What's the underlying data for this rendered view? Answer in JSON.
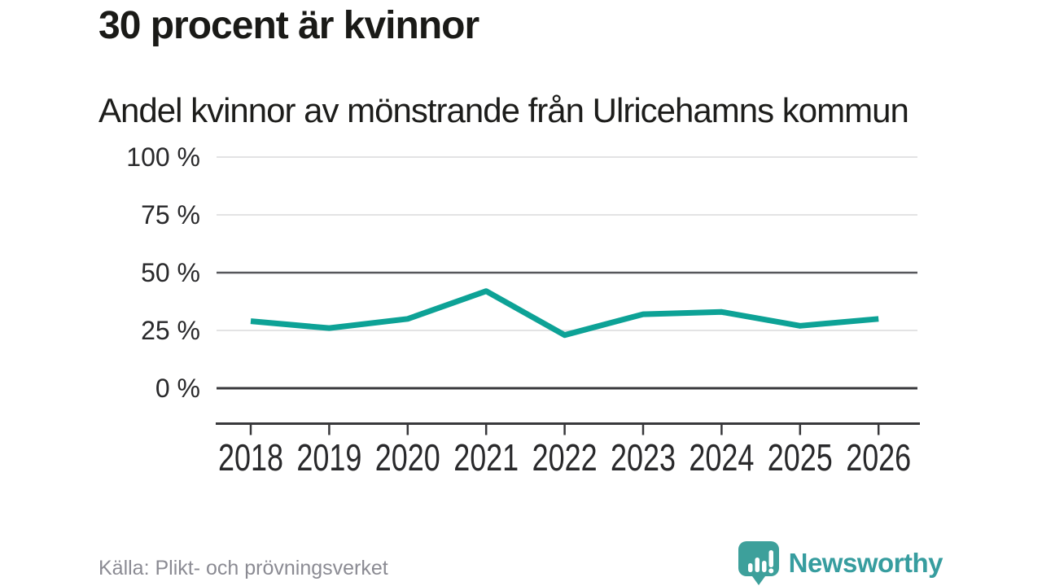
{
  "header": {
    "title": "30 procent är kvinnor",
    "subtitle": "Andel kvinnor av mönstrande från Ulricehamns kommun"
  },
  "chart_data": {
    "type": "line",
    "title": "30 procent är kvinnor",
    "subtitle": "Andel kvinnor av mönstrande från Ulricehamns kommun",
    "categories": [
      "2018",
      "2019",
      "2020",
      "2021",
      "2022",
      "2023",
      "2024",
      "2025",
      "2026"
    ],
    "series": [
      {
        "name": "Andel kvinnor av mönstrande",
        "values": [
          29,
          26,
          30,
          42,
          23,
          32,
          33,
          27,
          30
        ]
      }
    ],
    "unit": "%",
    "ylim": [
      0,
      100
    ],
    "yticks": [
      0,
      25,
      50,
      75,
      100
    ],
    "ytick_labels": [
      "0 %",
      "25 %",
      "50 %",
      "75 %",
      "100 %"
    ],
    "grid": "horizontal",
    "emphasized_gridlines": [
      0,
      50
    ],
    "legend_position": "none",
    "line_color": "#0DA296"
  },
  "footer": {
    "source": "Källa: Plikt- och prövningsverket",
    "brand_name": "Newsworthy"
  },
  "colors": {
    "accent": "#0DA296",
    "logo_teal": "#3DA09B",
    "grid_light": "#E3E3E4",
    "grid_mid": "#56575B",
    "axis_dark": "#38383B",
    "text_dark": "#1A1A17",
    "text_muted": "#8B8B93"
  }
}
